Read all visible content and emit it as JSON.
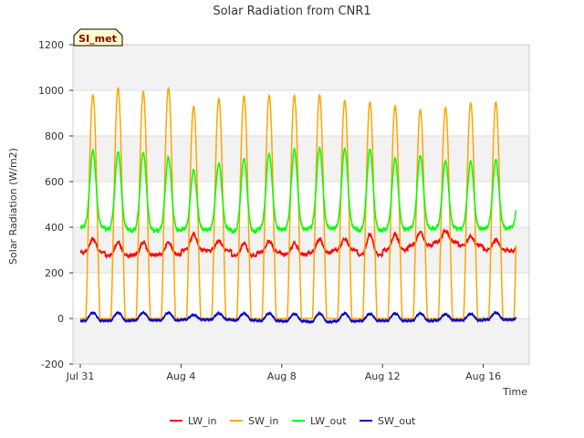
{
  "chart_data": {
    "type": "line",
    "title": "Solar Radiation from CNR1",
    "xlabel": "Time",
    "ylabel": "Solar Radiation (W/m2)",
    "site_tag": "SI_met",
    "ylim": [
      -200,
      1200
    ],
    "y_ticks": [
      "-200",
      "0",
      "200",
      "400",
      "600",
      "800",
      "1000",
      "1200"
    ],
    "x_ticks": [
      {
        "label": "Jul 31",
        "day": 0
      },
      {
        "label": "Aug 4",
        "day": 4
      },
      {
        "label": "Aug 8",
        "day": 8
      },
      {
        "label": "Aug 12",
        "day": 12
      },
      {
        "label": "Aug 16",
        "day": 16
      }
    ],
    "xlim_days": [
      0,
      18
    ],
    "data_end_day": 17.3,
    "grid": true,
    "legend_position": "bottom",
    "series": [
      {
        "name": "LW_in",
        "color": "#ff0000",
        "daily_min": [
          290,
          275,
          278,
          280,
          300,
          298,
          275,
          290,
          280,
          288,
          300,
          278,
          300,
          320,
          335,
          320,
          300,
          295
        ],
        "daily_max": [
          350,
          335,
          335,
          335,
          370,
          340,
          330,
          340,
          330,
          350,
          350,
          370,
          370,
          380,
          385,
          360,
          345,
          340
        ]
      },
      {
        "name": "SW_in",
        "color": "#ffa500",
        "daily_min": [
          0,
          0,
          0,
          0,
          0,
          0,
          0,
          0,
          0,
          0,
          0,
          0,
          0,
          0,
          0,
          0,
          0,
          0
        ],
        "daily_max": [
          980,
          1010,
          995,
          1010,
          930,
          965,
          975,
          978,
          978,
          980,
          955,
          948,
          932,
          915,
          925,
          945,
          948,
          948
        ]
      },
      {
        "name": "LW_out",
        "color": "#00ff00",
        "daily_min": [
          400,
          390,
          385,
          385,
          390,
          390,
          380,
          392,
          390,
          395,
          395,
          385,
          390,
          395,
          395,
          392,
          395,
          400
        ],
        "daily_max": [
          735,
          730,
          728,
          705,
          650,
          680,
          700,
          720,
          740,
          748,
          745,
          740,
          700,
          715,
          690,
          688,
          695,
          695
        ]
      },
      {
        "name": "SW_out",
        "color": "#0000cd",
        "daily_min": [
          -10,
          -10,
          -8,
          -8,
          -5,
          -5,
          -8,
          -10,
          -12,
          -15,
          -12,
          -10,
          -10,
          -10,
          -8,
          -8,
          -5,
          -5
        ],
        "daily_max": [
          25,
          25,
          25,
          25,
          15,
          22,
          22,
          22,
          20,
          22,
          22,
          20,
          22,
          22,
          18,
          20,
          25,
          25
        ]
      }
    ]
  }
}
